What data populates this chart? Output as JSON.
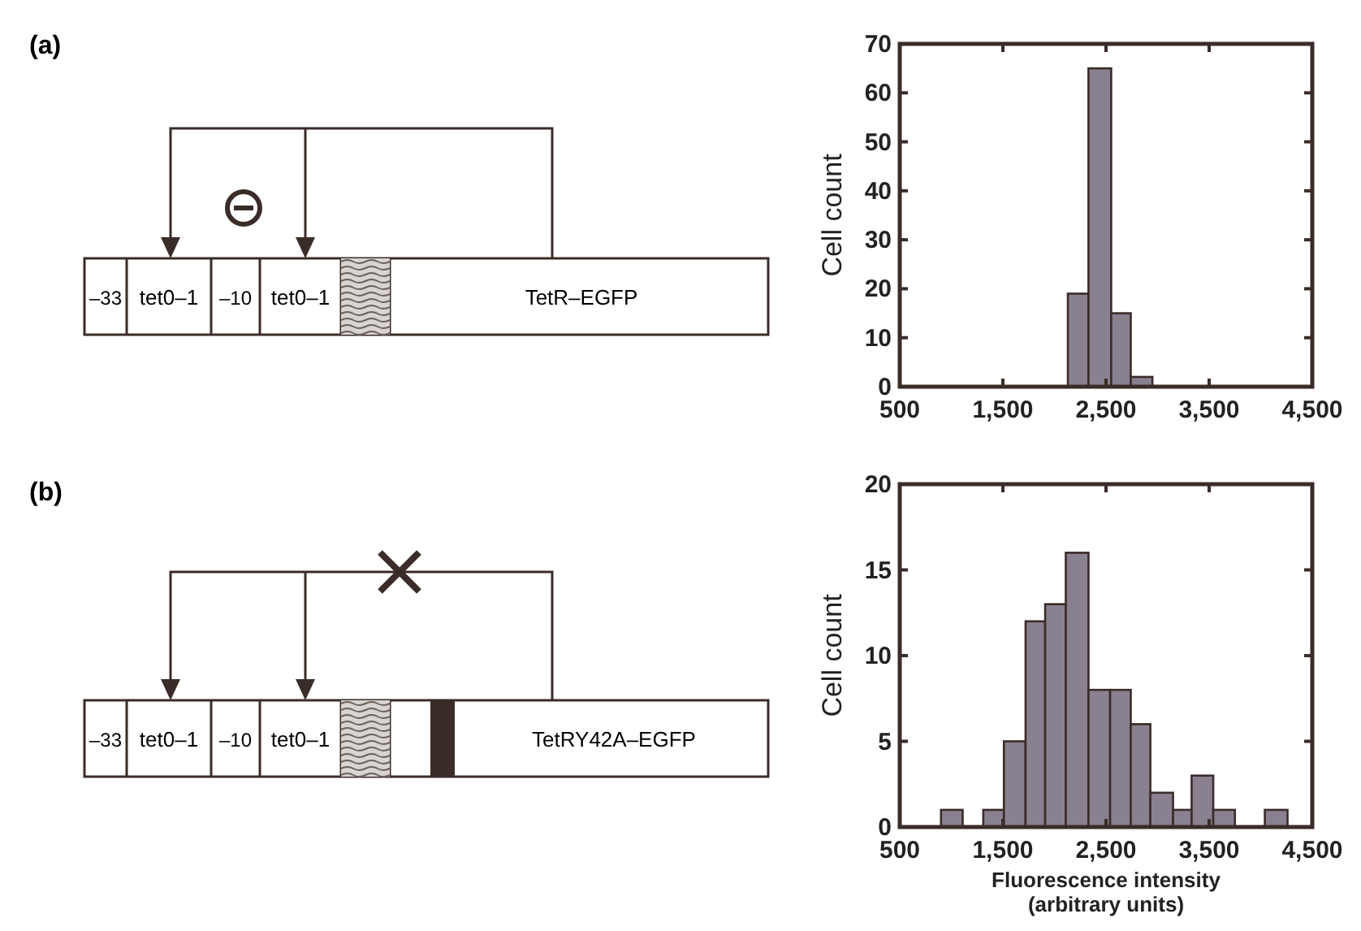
{
  "chart_data": [
    {
      "type": "histogram",
      "annotations": [
        "(a)",
        "–33",
        "tet0–1",
        "–10",
        "tet0–1",
        "TetR–EGFP"
      ],
      "ylabel": "Cell count",
      "bins": [
        2130,
        2330,
        2550,
        2740,
        2950
      ],
      "values": [
        19,
        65,
        15,
        2
      ],
      "color": "#8a8190",
      "xlim": [
        500,
        4500
      ],
      "xticks": [
        500,
        {
          "value": 1500,
          "label": "1,500"
        },
        {
          "value": 2500,
          "label": "2,500"
        },
        {
          "value": 3500,
          "label": "3,500"
        },
        {
          "value": 4500,
          "label": "4,500"
        }
      ],
      "ylim": [
        0,
        70
      ],
      "yticks": [
        0,
        10,
        20,
        30,
        40,
        50,
        60,
        70
      ],
      "grid": false
    },
    {
      "type": "histogram",
      "annotations": [
        "(b)",
        "–33",
        "tet0–1",
        "–10",
        "tet0–1",
        "TetRY42A–EGFP"
      ],
      "ylabel": "Cell count",
      "xlabel": "Fluorescence intensity\n(arbitrary units)",
      "bins": [
        900,
        1110,
        1310,
        1510,
        1720,
        1910,
        2110,
        2330,
        2540,
        2740,
        2930,
        3150,
        3330,
        3540,
        3750,
        4040,
        4260
      ],
      "values": [
        1,
        0,
        1,
        5,
        12,
        13,
        16,
        8,
        8,
        6,
        2,
        1,
        3,
        1,
        0,
        1
      ],
      "color": "#8a8190",
      "xlim": [
        500,
        4500
      ],
      "xticks": [
        500,
        {
          "value": 1500,
          "label": "1,500"
        },
        {
          "value": 2500,
          "label": "2,500"
        },
        {
          "value": 3500,
          "label": "3,500"
        },
        {
          "value": 4500,
          "label": "4,500"
        }
      ],
      "ylim": [
        0,
        20
      ],
      "yticks": [
        0,
        5,
        10,
        15,
        20
      ],
      "grid": false
    }
  ]
}
